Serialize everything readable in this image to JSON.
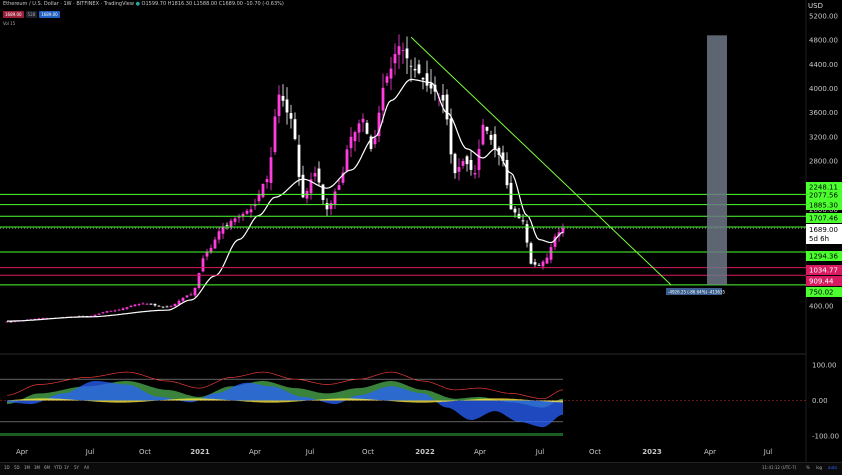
{
  "header": {
    "symbol": "Ethereum / U.S. Dollar · 1W · BITFINEX · TradingView",
    "ohlc": "O1599.70 H1816.30 L1588.00 C1689.00 -10.70 (-0.63%)",
    "chips": [
      "1689.00",
      "528",
      "1689.00"
    ],
    "vol_label": "Vol 15"
  },
  "currency_label": "USD",
  "bottom_bar": {
    "timeframes": [
      "1D",
      "5D",
      "1M",
      "3M",
      "6M",
      "YTD",
      "1Y",
      "5Y",
      "All"
    ],
    "clock": "11:41:12 (UTC-7)",
    "right_items": [
      "%",
      "log",
      "auto"
    ]
  },
  "colors": {
    "up_candle": "#ff3dde",
    "down_candle": "#ffffff",
    "ma_line": "#ffffff",
    "level_green": "#4cff2f",
    "level_red": "#d81b60",
    "trendline": "#7cfc40",
    "projection_box": "#6d7787",
    "price_tag": "#ffffff",
    "osc_green": "#4caf50",
    "osc_blue": "#2962ff",
    "osc_yellow": "#ffeb3b"
  },
  "chart_data": [
    {
      "type": "candlestick",
      "title": "",
      "xlabel": "",
      "ylabel": "",
      "y_axis_ticks": [
        400,
        800,
        1200,
        1600,
        2000,
        2400,
        2800,
        3200,
        3600,
        4000,
        4400,
        4800,
        5200
      ],
      "ylim": [
        0,
        5400
      ],
      "x_axis_ticks": [
        "Apr",
        "Jul",
        "Oct",
        "2021",
        "Apr",
        "Jul",
        "Oct",
        "2022",
        "Apr",
        "Jul",
        "Oct",
        "2023",
        "Apr",
        "Jul"
      ],
      "grid": false,
      "weekly_close_keypoints": [
        {
          "x": 0,
          "y": 140
        },
        {
          "x": 10,
          "y": 200
        },
        {
          "x": 20,
          "y": 230
        },
        {
          "x": 26,
          "y": 320
        },
        {
          "x": 34,
          "y": 440
        },
        {
          "x": 40,
          "y": 380
        },
        {
          "x": 46,
          "y": 590
        },
        {
          "x": 50,
          "y": 1300
        },
        {
          "x": 54,
          "y": 1700
        },
        {
          "x": 57,
          "y": 1850
        },
        {
          "x": 61,
          "y": 2000
        },
        {
          "x": 65,
          "y": 2500
        },
        {
          "x": 68,
          "y": 3900
        },
        {
          "x": 71,
          "y": 3500
        },
        {
          "x": 74,
          "y": 2200
        },
        {
          "x": 77,
          "y": 2600
        },
        {
          "x": 80,
          "y": 2000
        },
        {
          "x": 83,
          "y": 2400
        },
        {
          "x": 86,
          "y": 3200
        },
        {
          "x": 89,
          "y": 3500
        },
        {
          "x": 91,
          "y": 3000
        },
        {
          "x": 95,
          "y": 4200
        },
        {
          "x": 98,
          "y": 4700
        },
        {
          "x": 102,
          "y": 4300
        },
        {
          "x": 106,
          "y": 4000
        },
        {
          "x": 109,
          "y": 3800
        },
        {
          "x": 112,
          "y": 2600
        },
        {
          "x": 114,
          "y": 2800
        },
        {
          "x": 117,
          "y": 2600
        },
        {
          "x": 119,
          "y": 3400
        },
        {
          "x": 120,
          "y": 3300
        },
        {
          "x": 122,
          "y": 3000
        },
        {
          "x": 124,
          "y": 2800
        },
        {
          "x": 126,
          "y": 2000
        },
        {
          "x": 129,
          "y": 1800
        },
        {
          "x": 131,
          "y": 1100
        },
        {
          "x": 133,
          "y": 1070
        },
        {
          "x": 135,
          "y": 1200
        },
        {
          "x": 137,
          "y": 1550
        },
        {
          "x": 139,
          "y": 1689
        }
      ],
      "moving_average_keypoints": [
        {
          "x": 0,
          "y": 150
        },
        {
          "x": 20,
          "y": 220
        },
        {
          "x": 40,
          "y": 330
        },
        {
          "x": 46,
          "y": 500
        },
        {
          "x": 52,
          "y": 900
        },
        {
          "x": 58,
          "y": 1500
        },
        {
          "x": 63,
          "y": 1900
        },
        {
          "x": 67,
          "y": 2200
        },
        {
          "x": 74,
          "y": 2500
        },
        {
          "x": 80,
          "y": 2350
        },
        {
          "x": 86,
          "y": 2650
        },
        {
          "x": 92,
          "y": 3200
        },
        {
          "x": 96,
          "y": 3800
        },
        {
          "x": 101,
          "y": 4150
        },
        {
          "x": 106,
          "y": 4100
        },
        {
          "x": 110,
          "y": 3600
        },
        {
          "x": 115,
          "y": 3000
        },
        {
          "x": 119,
          "y": 2850
        },
        {
          "x": 122,
          "y": 3000
        },
        {
          "x": 126,
          "y": 2600
        },
        {
          "x": 130,
          "y": 1900
        },
        {
          "x": 133,
          "y": 1500
        },
        {
          "x": 136,
          "y": 1450
        },
        {
          "x": 139,
          "y": 1620
        }
      ],
      "horizontal_levels": [
        {
          "value": 2248.11,
          "label": "2248.11",
          "color": "green"
        },
        {
          "value": 2077.56,
          "label": "2077.56",
          "color": "green"
        },
        {
          "value": 1885.3,
          "label": "1885.30",
          "color": "green"
        },
        {
          "value": 1707.46,
          "label": "1707.46",
          "color": "green"
        },
        {
          "value": 1294.36,
          "label": "1294.36",
          "color": "green"
        },
        {
          "value": 1034.77,
          "label": "1034.77",
          "color": "red"
        },
        {
          "value": 909.44,
          "label": "909.44",
          "color": "red"
        },
        {
          "value": 750.02,
          "label": "750.02",
          "color": "green"
        }
      ],
      "last_price": {
        "value": 1689.0,
        "label": "1689.00",
        "countdown": "5d 6h"
      },
      "trendline": {
        "from": {
          "x": 101,
          "y": 4850
        },
        "to": {
          "x": 166,
          "y": 750
        }
      },
      "projection_box": {
        "x_from": 175,
        "x_to": 180,
        "y_from": 750,
        "y_to": 4880
      },
      "measure_label": "-4926.25 (-86.64%) -413635"
    },
    {
      "type": "area",
      "title": "",
      "y_axis_ticks": [
        100,
        0,
        -100
      ],
      "ylim": [
        -115,
        115
      ],
      "reference_levels": [
        60,
        -60
      ],
      "series": [
        {
          "color": "green",
          "keypoints": [
            {
              "x": 0,
              "y": -10
            },
            {
              "x": 8,
              "y": 20
            },
            {
              "x": 20,
              "y": 40
            },
            {
              "x": 30,
              "y": 55
            },
            {
              "x": 40,
              "y": 30
            },
            {
              "x": 48,
              "y": 10
            },
            {
              "x": 56,
              "y": 40
            },
            {
              "x": 64,
              "y": 55
            },
            {
              "x": 72,
              "y": 35
            },
            {
              "x": 80,
              "y": 20
            },
            {
              "x": 88,
              "y": 35
            },
            {
              "x": 96,
              "y": 55
            },
            {
              "x": 104,
              "y": 30
            },
            {
              "x": 112,
              "y": 5
            },
            {
              "x": 118,
              "y": 10
            },
            {
              "x": 126,
              "y": -5
            },
            {
              "x": 134,
              "y": -20
            },
            {
              "x": 139,
              "y": 5
            }
          ]
        },
        {
          "color": "blue",
          "keypoints": [
            {
              "x": 0,
              "y": -5
            },
            {
              "x": 6,
              "y": -10
            },
            {
              "x": 14,
              "y": 20
            },
            {
              "x": 22,
              "y": 55
            },
            {
              "x": 30,
              "y": 45
            },
            {
              "x": 38,
              "y": 10
            },
            {
              "x": 46,
              "y": -5
            },
            {
              "x": 52,
              "y": 20
            },
            {
              "x": 60,
              "y": 50
            },
            {
              "x": 66,
              "y": 40
            },
            {
              "x": 74,
              "y": 10
            },
            {
              "x": 82,
              "y": -10
            },
            {
              "x": 88,
              "y": 15
            },
            {
              "x": 96,
              "y": 40
            },
            {
              "x": 104,
              "y": 20
            },
            {
              "x": 110,
              "y": -20
            },
            {
              "x": 116,
              "y": -55
            },
            {
              "x": 122,
              "y": -30
            },
            {
              "x": 128,
              "y": -60
            },
            {
              "x": 134,
              "y": -75
            },
            {
              "x": 139,
              "y": -40
            }
          ]
        }
      ]
    }
  ]
}
